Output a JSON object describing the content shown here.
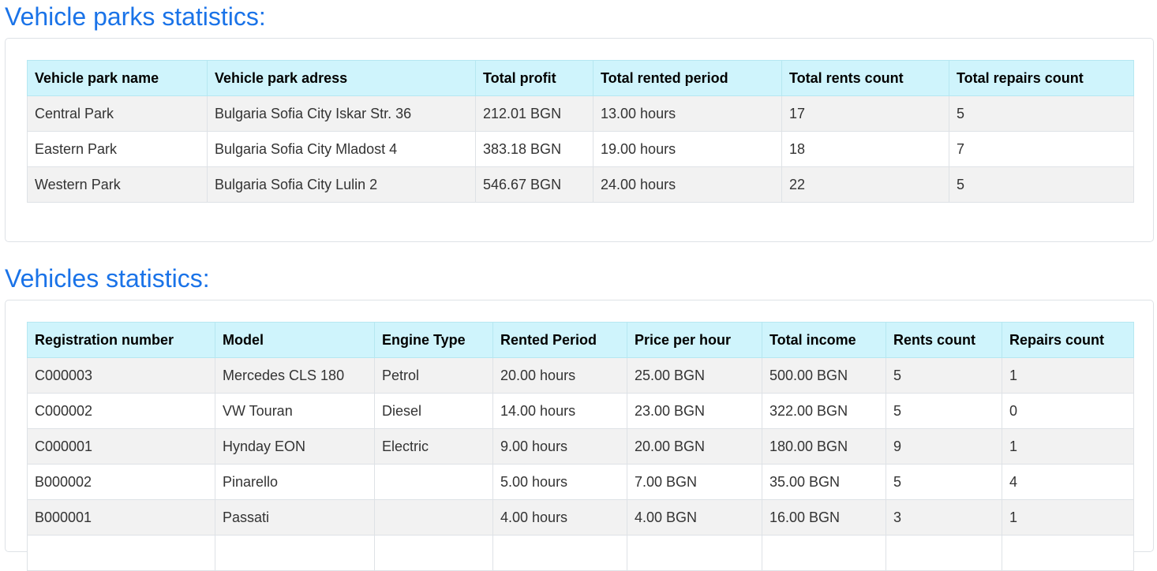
{
  "parks_section": {
    "title": "Vehicle parks statistics:",
    "headers": [
      "Vehicle park name",
      "Vehicle park adress",
      "Total profit",
      "Total rented period",
      "Total rents count",
      "Total repairs count"
    ],
    "rows": [
      [
        "Central Park",
        "Bulgaria Sofia City Iskar Str. 36",
        "212.01 BGN",
        "13.00 hours",
        "17",
        "5"
      ],
      [
        "Eastern Park",
        "Bulgaria Sofia City Mladost 4",
        "383.18 BGN",
        "19.00 hours",
        "18",
        "7"
      ],
      [
        "Western Park",
        "Bulgaria Sofia City Lulin 2",
        "546.67 BGN",
        "24.00 hours",
        "22",
        "5"
      ]
    ]
  },
  "vehicles_section": {
    "title": "Vehicles statistics:",
    "headers": [
      "Registration number",
      "Model",
      "Engine Type",
      "Rented Period",
      "Price per hour",
      "Total income",
      "Rents count",
      "Repairs count"
    ],
    "rows": [
      [
        "C000003",
        "Mercedes CLS 180",
        "Petrol",
        "20.00 hours",
        "25.00 BGN",
        "500.00 BGN",
        "5",
        "1"
      ],
      [
        "C000002",
        "VW Touran",
        "Diesel",
        "14.00 hours",
        "23.00 BGN",
        "322.00 BGN",
        "5",
        "0"
      ],
      [
        "C000001",
        "Hynday EON",
        "Electric",
        "9.00 hours",
        "20.00 BGN",
        "180.00 BGN",
        "9",
        "1"
      ],
      [
        "B000002",
        "Pinarello",
        "",
        "5.00 hours",
        "7.00 BGN",
        "35.00 BGN",
        "5",
        "4"
      ],
      [
        "B000001",
        "Passati",
        "",
        "4.00 hours",
        "4.00 BGN",
        "16.00 BGN",
        "3",
        "1"
      ],
      [
        "",
        "",
        "",
        "",
        "",
        "",
        "",
        ""
      ]
    ]
  },
  "colors": {
    "title": "#1a73e8",
    "header_bg": "#cff4fc",
    "stripe_bg": "#f2f2f2"
  }
}
